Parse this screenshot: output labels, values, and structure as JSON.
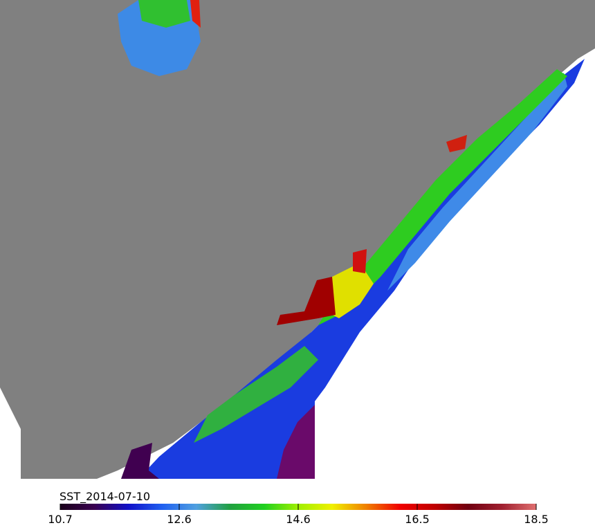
{
  "colorbar": {
    "label": "SST_2014-07-10",
    "lim": [
      10.7,
      18.5
    ],
    "ticks": [
      10.7,
      {
        "value": 12.65,
        "label": "12.6"
      },
      14.6,
      {
        "value": 16.55,
        "label": "16.5"
      },
      18.5
    ],
    "colormap": [
      "#1a001a",
      "#3a0050",
      "#1010c8",
      "#2060f0",
      "#50a0e0",
      "#20a040",
      "#20d020",
      "#a0f000",
      "#f0f000",
      "#f08000",
      "#f00000",
      "#c00000",
      "#700010",
      "#a02030",
      "#e07070"
    ]
  }
}
